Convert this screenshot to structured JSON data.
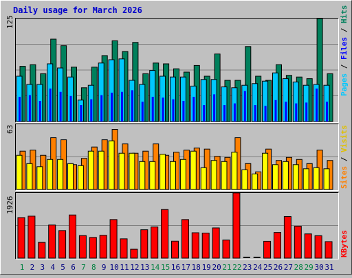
{
  "chart_data": [
    {
      "type": "bar",
      "panel": "hits-files-pages",
      "title": "Daily usage for March 2026",
      "ylim": [
        0,
        125
      ],
      "y_tick_labels": [
        "125"
      ],
      "legend": {
        "position": "right",
        "separator": " / "
      },
      "categories": [
        "1",
        "2",
        "3",
        "4",
        "5",
        "6",
        "7",
        "8",
        "9",
        "10",
        "11",
        "12",
        "13",
        "14",
        "15",
        "16",
        "17",
        "18",
        "19",
        "20",
        "21",
        "22",
        "23",
        "24",
        "25",
        "26",
        "27",
        "28",
        "29",
        "30",
        "31"
      ],
      "series": [
        {
          "name": "Hits",
          "color": "#00805c",
          "values": [
            67,
            69,
            58,
            100,
            92,
            66,
            41,
            66,
            80,
            98,
            85,
            96,
            58,
            71,
            70,
            64,
            60,
            68,
            55,
            82,
            50,
            50,
            91,
            55,
            50,
            69,
            56,
            54,
            52,
            125,
            58
          ]
        },
        {
          "name": "Files",
          "color": "#0000ff",
          "values": [
            30,
            32,
            25,
            40,
            36,
            31,
            20,
            27,
            32,
            35,
            36,
            38,
            24,
            30,
            29,
            27,
            25,
            30,
            20,
            33,
            20,
            22,
            37,
            20,
            19,
            26,
            24,
            22,
            23,
            40,
            24
          ]
        },
        {
          "name": "Pages",
          "color": "#00c8ff",
          "values": [
            55,
            45,
            45,
            70,
            65,
            54,
            26,
            44,
            71,
            75,
            76,
            50,
            45,
            62,
            55,
            54,
            54,
            43,
            51,
            51,
            42,
            41,
            44,
            46,
            49,
            59,
            52,
            48,
            44,
            45,
            44
          ]
        }
      ]
    },
    {
      "type": "bar",
      "panel": "sites-visits",
      "ylim": [
        0,
        63
      ],
      "y_tick_labels": [
        "63"
      ],
      "legend": {
        "position": "right",
        "separator": " / "
      },
      "categories": [
        "1",
        "2",
        "3",
        "4",
        "5",
        "6",
        "7",
        "8",
        "9",
        "10",
        "11",
        "12",
        "13",
        "14",
        "15",
        "16",
        "17",
        "18",
        "19",
        "20",
        "21",
        "22",
        "23",
        "24",
        "25",
        "26",
        "27",
        "28",
        "29",
        "30",
        "31"
      ],
      "series": [
        {
          "name": "Visits",
          "color": "#ffff00",
          "values": [
            33,
            25,
            22,
            29,
            29,
            25,
            23,
            37,
            37,
            47,
            35,
            35,
            27,
            27,
            34,
            27,
            29,
            37,
            21,
            28,
            27,
            36,
            19,
            15,
            35,
            24,
            27,
            24,
            20,
            21,
            20
          ]
        },
        {
          "name": "Sites",
          "color": "#ff8000",
          "values": [
            37,
            38,
            33,
            50,
            48,
            24,
            30,
            41,
            48,
            58,
            44,
            35,
            37,
            44,
            33,
            36,
            38,
            40,
            39,
            32,
            31,
            50,
            25,
            17,
            39,
            28,
            31,
            29,
            25,
            38,
            28
          ]
        }
      ]
    },
    {
      "type": "bar",
      "panel": "kbytes",
      "ylim": [
        0,
        1926
      ],
      "y_tick_labels": [
        "1926"
      ],
      "legend": {
        "position": "right"
      },
      "categories": [
        "1",
        "2",
        "3",
        "4",
        "5",
        "6",
        "7",
        "8",
        "9",
        "10",
        "11",
        "12",
        "13",
        "14",
        "15",
        "16",
        "17",
        "18",
        "19",
        "20",
        "21",
        "22",
        "23",
        "24",
        "25",
        "26",
        "27",
        "28",
        "29",
        "30",
        "31"
      ],
      "x_tick_labels": [
        "1",
        "2",
        "3",
        "4",
        "5",
        "6",
        "7",
        "8",
        "9",
        "10",
        "11",
        "12",
        "13",
        "14",
        "15",
        "16",
        "17",
        "18",
        "19",
        "20",
        "21",
        "22",
        "23",
        "24",
        "25",
        "26",
        "27",
        "28",
        "29",
        "30",
        "31"
      ],
      "weekend_days": [
        "1",
        "7",
        "8",
        "14",
        "15",
        "21",
        "22",
        "28",
        "29"
      ],
      "weekend_color": "#008040",
      "weekday_color": "#000080",
      "series": [
        {
          "name": "KBytes",
          "color": "#ff0000",
          "values": [
            1196,
            1239,
            464,
            977,
            813,
            1273,
            665,
            610,
            673,
            1138,
            570,
            262,
            838,
            919,
            1434,
            501,
            1138,
            749,
            739,
            892,
            533,
            1926,
            0,
            0,
            498,
            757,
            1227,
            941,
            715,
            661,
            487
          ]
        }
      ]
    }
  ]
}
